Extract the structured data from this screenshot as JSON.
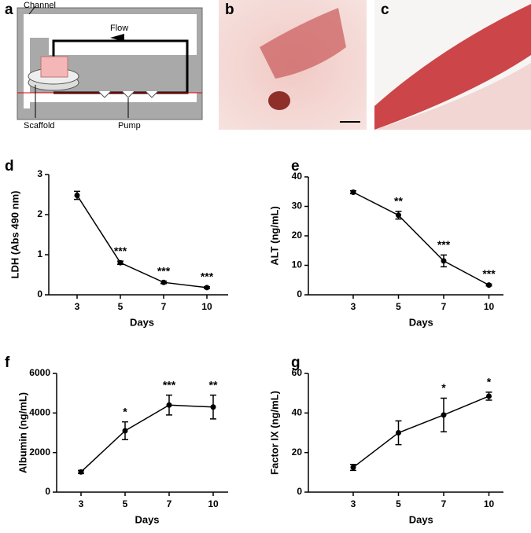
{
  "diagram": {
    "label": "a",
    "channel": "Channel",
    "flow": "Flow",
    "scaffold": "Scaffold",
    "pump": "Pump"
  },
  "images": [
    {
      "label": "b"
    },
    {
      "label": "c"
    }
  ],
  "chart_data": [
    {
      "type": "line",
      "panel_label": "d",
      "y_label": "LDH (Abs 490 nm)",
      "x_label": "Days",
      "categories": [
        "3",
        "5",
        "7",
        "10"
      ],
      "values": [
        2.48,
        0.8,
        0.31,
        0.18
      ],
      "errors": [
        0.1,
        0.04,
        0.03,
        0.02
      ],
      "annotations": [
        null,
        "***",
        "***",
        "***"
      ],
      "color": "#000000",
      "ylim": [
        0,
        3
      ],
      "yticks": [
        0,
        1,
        2,
        3
      ]
    },
    {
      "type": "line",
      "panel_label": "e",
      "y_label": "ALT (ng/mL)",
      "x_label": "Days",
      "categories": [
        "3",
        "5",
        "7",
        "10"
      ],
      "values": [
        34.8,
        27,
        11.5,
        3.3
      ],
      "errors": [
        0.5,
        1.3,
        2,
        0.3
      ],
      "annotations": [
        null,
        "**",
        "***",
        "***"
      ],
      "color": "#000000",
      "ylim": [
        0,
        40
      ],
      "yticks": [
        0,
        10,
        20,
        30,
        40
      ]
    },
    {
      "type": "line",
      "panel_label": "f",
      "y_label": "Albumin (ng/mL)",
      "x_label": "Days",
      "categories": [
        "3",
        "5",
        "7",
        "10"
      ],
      "values": [
        1020,
        3100,
        4400,
        4300
      ],
      "errors": [
        80,
        450,
        500,
        600
      ],
      "annotations": [
        null,
        "*",
        "***",
        "**"
      ],
      "color": "#000000",
      "ylim": [
        0,
        6000
      ],
      "yticks": [
        0,
        2000,
        4000,
        6000
      ]
    },
    {
      "type": "line",
      "panel_label": "g",
      "y_label": "Factor IX (ng/mL)",
      "x_label": "Days",
      "categories": [
        "3",
        "5",
        "7",
        "10"
      ],
      "values": [
        12.5,
        30,
        39,
        48.5
      ],
      "errors": [
        1.5,
        6,
        8.5,
        2
      ],
      "annotations": [
        null,
        null,
        "*",
        "*"
      ],
      "color": "#000000",
      "ylim": [
        0,
        60
      ],
      "yticks": [
        0,
        20,
        40,
        60
      ]
    }
  ]
}
